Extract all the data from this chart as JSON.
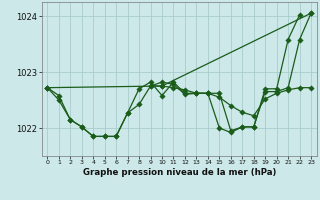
{
  "background_color": "#cce8e8",
  "grid_color": "#aacccc",
  "line_color": "#1a5c1a",
  "title": "Graphe pression niveau de la mer (hPa)",
  "ylim": [
    1021.5,
    1024.25
  ],
  "yticks": [
    1022,
    1023,
    1024
  ],
  "hours": [
    0,
    1,
    2,
    3,
    4,
    5,
    6,
    7,
    8,
    9,
    10,
    11,
    12,
    13,
    14,
    15,
    16,
    17,
    18,
    19,
    20,
    21,
    22,
    23
  ],
  "s1": [
    1022.72,
    1022.58,
    1022.15,
    1022.02,
    1021.85,
    1021.85,
    1021.85,
    1022.27,
    1022.42,
    1022.75,
    1022.82,
    1022.78,
    1022.6,
    1022.62,
    1022.62,
    1022.0,
    1021.92,
    1022.02,
    1022.02,
    1022.7,
    1022.7,
    1023.58,
    1024.02,
    null
  ],
  "s2": [
    1022.72,
    1022.5,
    1022.15,
    1022.02,
    1021.85,
    1021.85,
    1021.85,
    1022.27,
    1022.7,
    1022.82,
    1022.58,
    1022.82,
    1022.62,
    1022.62,
    1022.62,
    1022.62,
    1021.95,
    1022.02,
    1022.02,
    1022.65,
    1022.65,
    1022.72,
    1023.58,
    1024.05
  ],
  "s3": [
    1022.72,
    null,
    null,
    null,
    null,
    null,
    null,
    null,
    null,
    null,
    1022.75,
    null,
    null,
    null,
    null,
    null,
    null,
    null,
    null,
    null,
    null,
    null,
    null,
    1024.05
  ],
  "s4": [
    null,
    null,
    null,
    null,
    null,
    null,
    null,
    null,
    null,
    1022.75,
    1022.75,
    1022.72,
    1022.68,
    1022.62,
    1022.62,
    1022.55,
    1022.4,
    1022.28,
    1022.22,
    1022.52,
    1022.62,
    1022.68,
    1022.72,
    1022.72
  ]
}
